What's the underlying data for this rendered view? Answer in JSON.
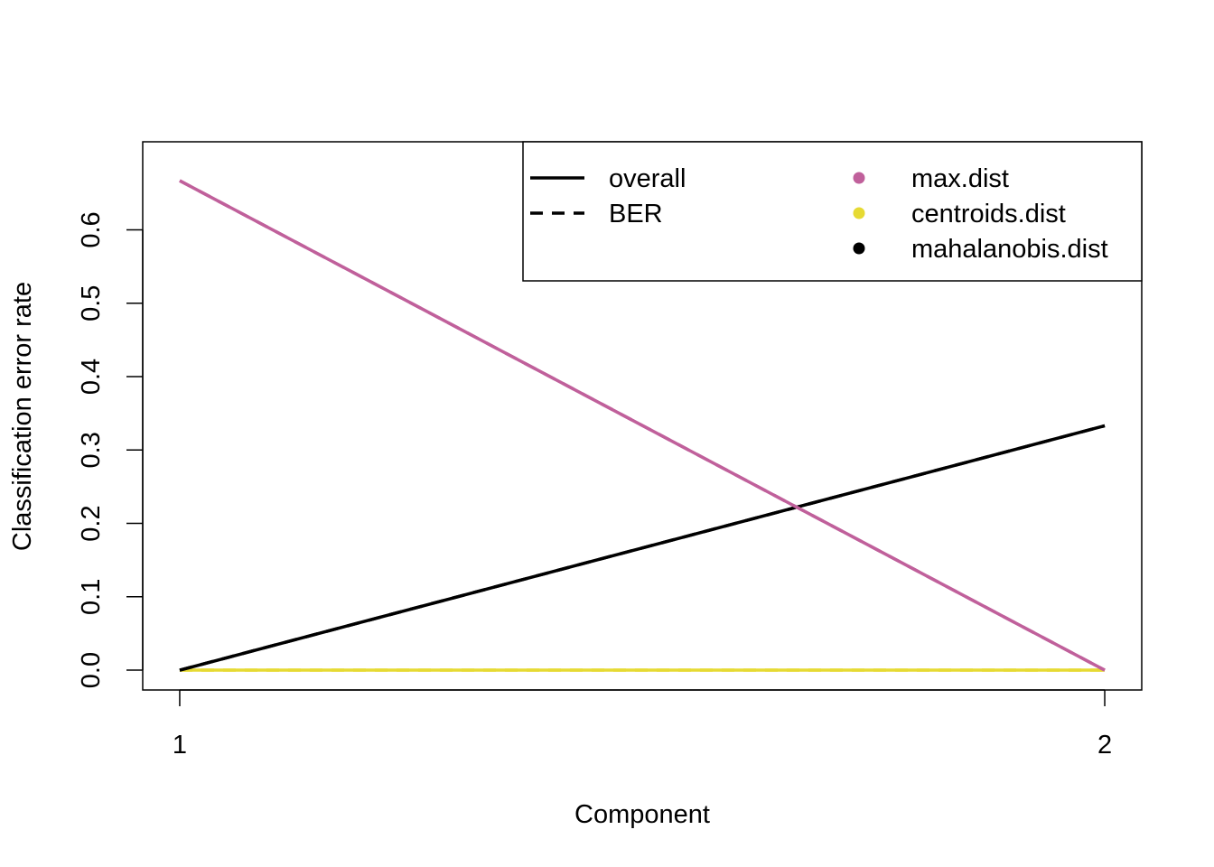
{
  "chart_data": {
    "type": "line",
    "title": "",
    "xlabel": "Component",
    "ylabel": "Classification error rate",
    "x": [
      1,
      2
    ],
    "x_ticks": [
      "1",
      "2"
    ],
    "xlim": [
      0.96,
      2.04
    ],
    "ylim": [
      -0.027,
      0.72
    ],
    "y_ticks": [
      "0.0",
      "0.1",
      "0.2",
      "0.3",
      "0.4",
      "0.5",
      "0.6"
    ],
    "grid": false,
    "legend_placement": "top-right",
    "legend_linetypes": [
      {
        "label": "overall",
        "style": "solid"
      },
      {
        "label": "BER",
        "style": "dashed"
      }
    ],
    "legend_distances": [
      {
        "label": "max.dist",
        "color": "#C0609B"
      },
      {
        "label": "centroids.dist",
        "color": "#E6DA33"
      },
      {
        "label": "mahalanobis.dist",
        "color": "#000000"
      }
    ],
    "series": [
      {
        "name": "mahalanobis.dist",
        "linetype": "overall",
        "color": "#000000",
        "values": [
          0.0,
          0.333
        ]
      },
      {
        "name": "mahalanobis.dist",
        "linetype": "BER",
        "color": "#000000",
        "values": [
          0.0,
          0.333
        ]
      },
      {
        "name": "centroids.dist",
        "linetype": "overall",
        "color": "#E6DA33",
        "values": [
          0.0,
          0.0
        ]
      },
      {
        "name": "centroids.dist",
        "linetype": "BER",
        "color": "#E6DA33",
        "values": [
          0.0,
          0.0
        ]
      },
      {
        "name": "max.dist",
        "linetype": "overall",
        "color": "#C0609B",
        "values": [
          0.667,
          0.0
        ]
      },
      {
        "name": "max.dist",
        "linetype": "BER",
        "color": "#C0609B",
        "values": [
          0.667,
          0.0
        ]
      }
    ]
  }
}
